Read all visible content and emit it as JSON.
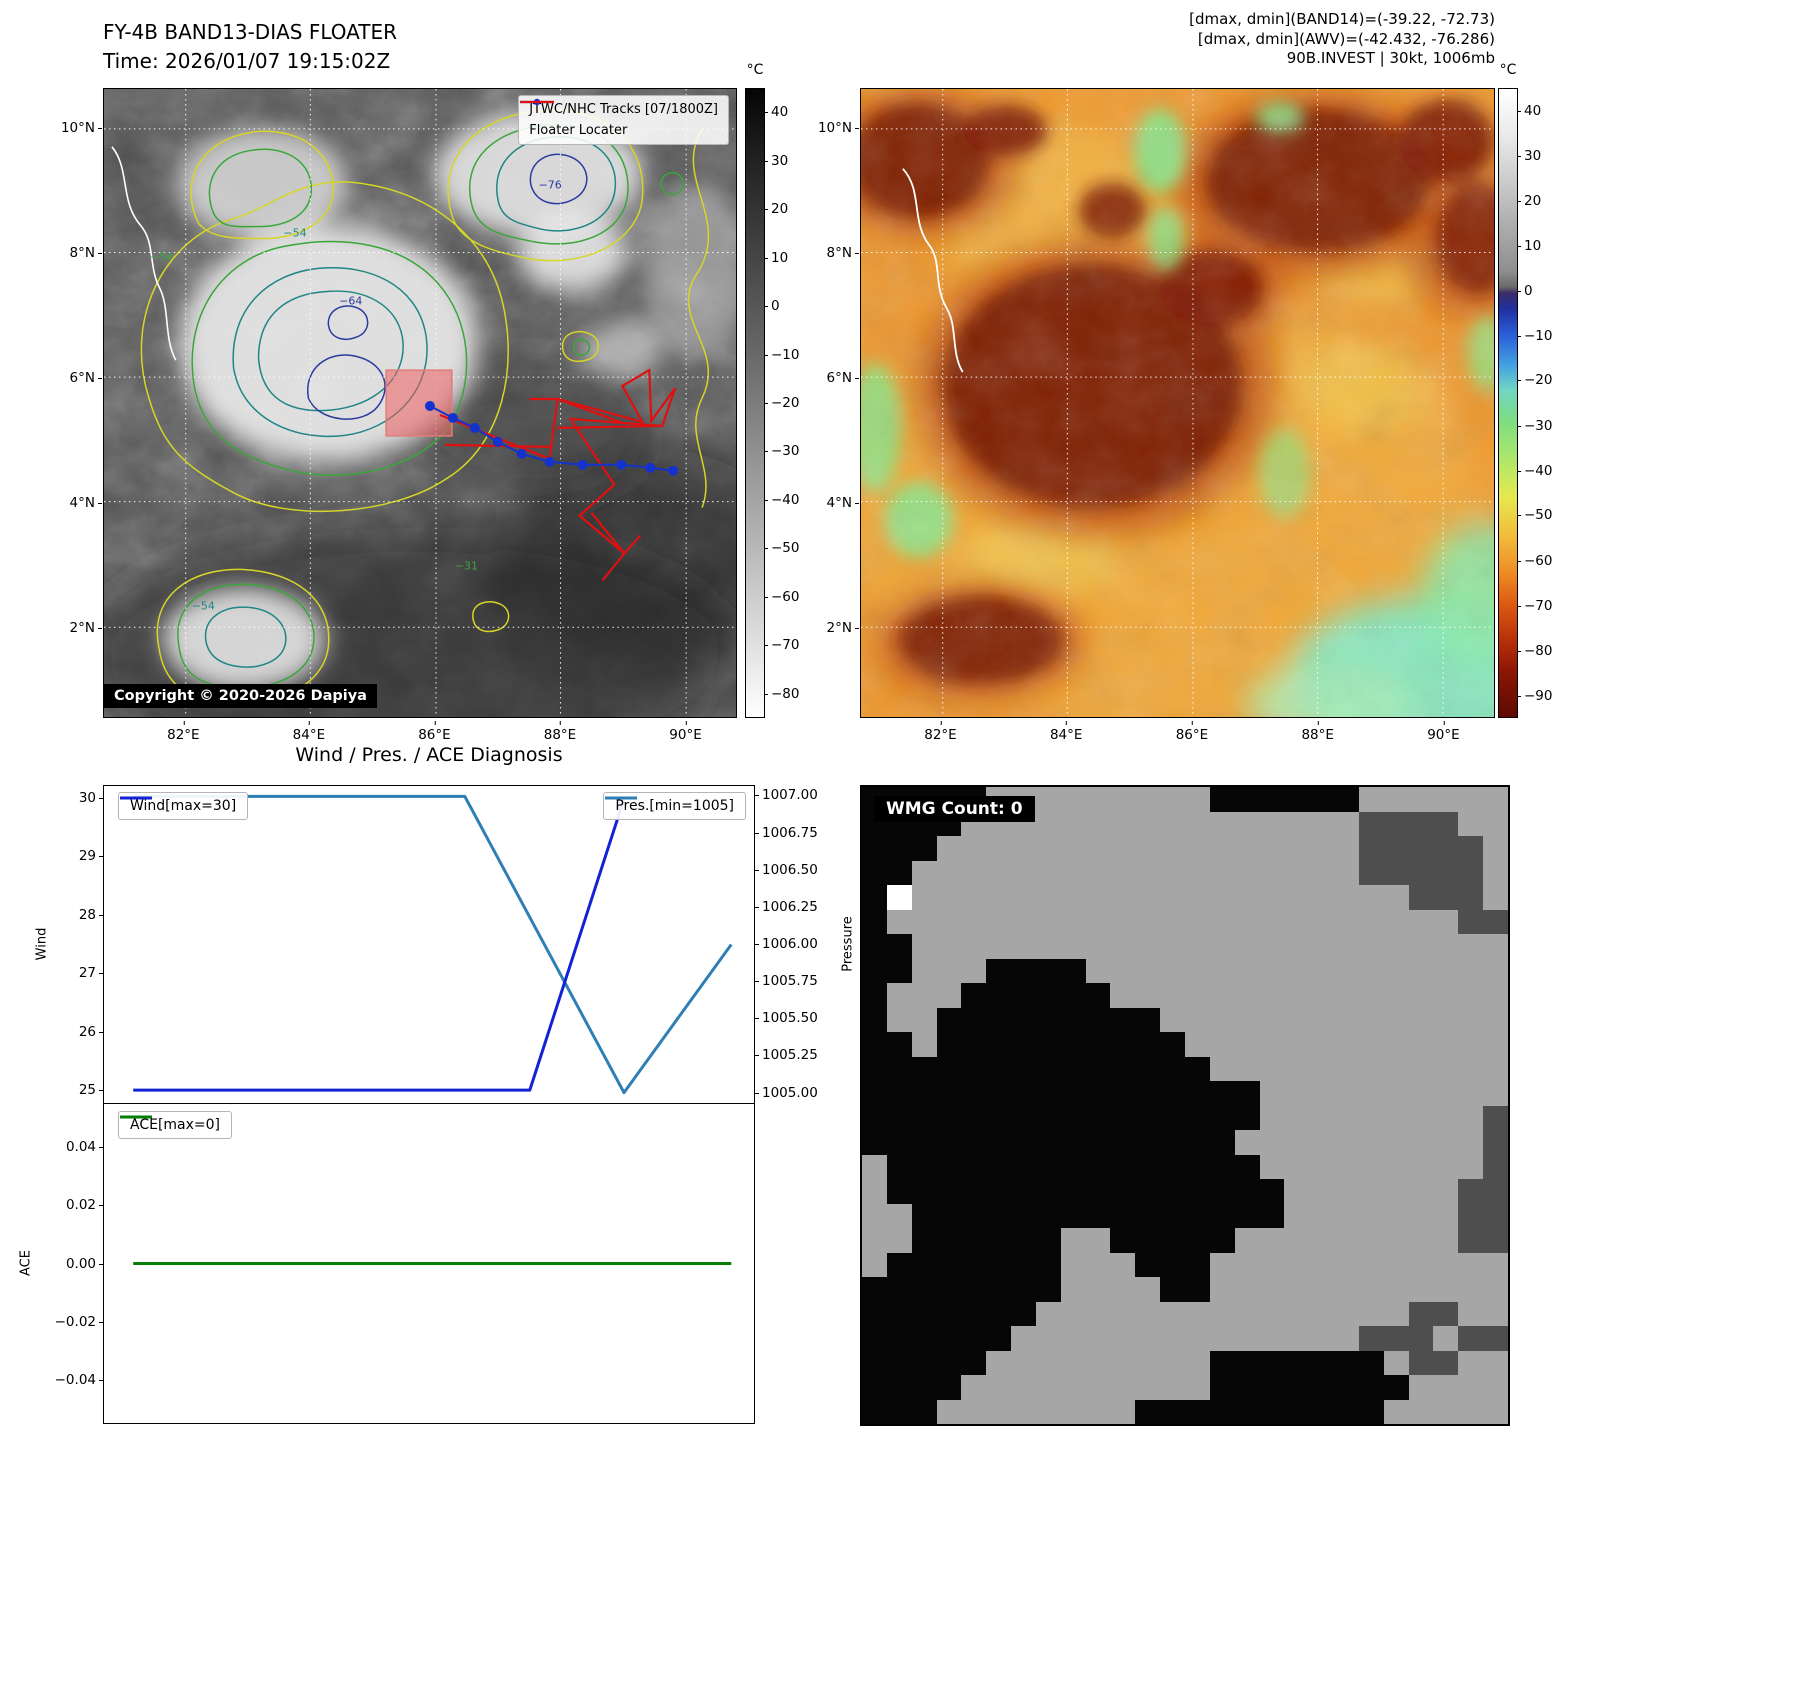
{
  "panel1": {
    "title_line1": "FY-4B BAND13-DIAS FLOATER",
    "title_line2": "Time: 2026/01/07 19:15:02Z",
    "legend_track": "JTWC/NHC Tracks [07/1800Z]",
    "legend_floater": "Floater Locater",
    "copyright": "Copyright © 2020-2026 Dapiya",
    "track_color": "#1433cc",
    "floater_color": "#e01010",
    "colorbar_unit": "°C",
    "colorbar_ticks": [
      "40",
      "30",
      "20",
      "10",
      "0",
      "−10",
      "−20",
      "−30",
      "−40",
      "−50",
      "−60",
      "−70",
      "−80"
    ],
    "x_ticks": [
      "82°E",
      "84°E",
      "86°E",
      "88°E",
      "90°E"
    ],
    "y_ticks": [
      "10°N",
      "8°N",
      "6°N",
      "4°N",
      "2°N"
    ],
    "contour_labels": [
      "−54",
      "−76",
      "−64",
      "−54",
      "−31",
      "−54"
    ]
  },
  "panel2": {
    "header_lines": [
      "[dmax, dmin](BAND14)=(-39.22, -72.73)",
      "[dmax, dmin](AWV)=(-42.432, -76.286)",
      "90B.INVEST | 30kt, 1006mb"
    ],
    "colorbar_unit": "°C",
    "colorbar_ticks": [
      "40",
      "30",
      "20",
      "10",
      "0",
      "−10",
      "−20",
      "−30",
      "−40",
      "−50",
      "−60",
      "−70",
      "−80",
      "−90"
    ],
    "x_ticks": [
      "82°E",
      "84°E",
      "86°E",
      "88°E",
      "90°E"
    ],
    "y_ticks": [
      "10°N",
      "8°N",
      "6°N",
      "4°N",
      "2°N"
    ]
  },
  "chart_data": [
    {
      "type": "line",
      "title": "Wind / Pres. / ACE Diagnosis",
      "xlabel": "",
      "left_axis": {
        "label": "Wind",
        "min": 25,
        "max": 30,
        "ticks": [
          "30",
          "29",
          "28",
          "27",
          "26",
          "25"
        ]
      },
      "right_axis": {
        "label": "Pressure",
        "min": 1005,
        "max": 1007,
        "ticks": [
          "1007.00",
          "1006.75",
          "1006.50",
          "1006.25",
          "1006.00",
          "1005.75",
          "1005.50",
          "1005.25",
          "1005.00"
        ]
      },
      "series": [
        {
          "name": "Wind[max=30]",
          "color": "#1322d6",
          "axis": "left",
          "x": [
            0.045,
            0.655,
            0.8
          ],
          "y": [
            25,
            25,
            30
          ]
        },
        {
          "name": "Pres.[min=1005]",
          "color": "#2e7fb5",
          "axis": "right",
          "x": [
            0.045,
            0.555,
            0.8,
            0.965
          ],
          "y": [
            1007,
            1007,
            1005,
            1006
          ]
        }
      ],
      "legend_position": "top-left / top-right",
      "grid": false
    },
    {
      "type": "line",
      "title": "",
      "left_axis": {
        "label": "ACE",
        "min": -0.05,
        "max": 0.05,
        "ticks": [
          "0.04",
          "0.02",
          "0.00",
          "−0.02",
          "−0.04"
        ]
      },
      "series": [
        {
          "name": "ACE[max=0]",
          "color": "#067d06",
          "axis": "left",
          "x": [
            0.045,
            0.965
          ],
          "y": [
            0,
            0
          ]
        }
      ],
      "legend_position": "top-left",
      "grid": false
    }
  ],
  "panel4": {
    "label": "WMG Count: 0",
    "palette": {
      "#": "#060606",
      ".": "#a6a6a6",
      "d": "#4e4e4e",
      "w": "#ffffff"
    },
    "pattern": [
      "#####.........######......",
      "####................dddd..",
      "###.................ddddd.",
      "##..................ddddd.",
      "#w....................ddd.",
      "#.......................dd",
      "##........................",
      "##...####.................",
      "#...######................",
      "#..#########..............",
      "##.##########.............",
      "##############............",
      "################..........",
      "################.........d",
      "###############..........d",
      ".###############.........d",
      ".################.......dd",
      "..###############.......dd",
      "..######..#####.........dd",
      ".#######...###............",
      "########....##............",
      "#######...............dd..",
      "######..............ddd.dd",
      "#####.........#######.dd..",
      "####..........########....",
      "###........##########....."
    ]
  }
}
